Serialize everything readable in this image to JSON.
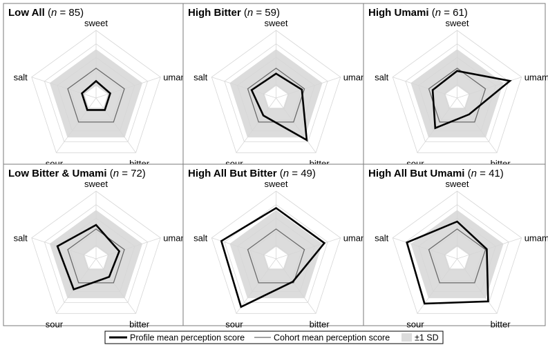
{
  "chart_data": [
    {
      "type": "radar",
      "title_bold": "Low All",
      "title_n": "85",
      "axes": [
        "sweet",
        "umami",
        "bitter",
        "sour",
        "salt"
      ],
      "series": [
        {
          "name": "Profile mean perception score",
          "values": [
            0.25,
            0.22,
            0.22,
            0.22,
            0.22
          ]
        },
        {
          "name": "Cohort mean perception score",
          "values": [
            0.44,
            0.44,
            0.44,
            0.44,
            0.44
          ]
        }
      ],
      "sd_band": {
        "lower": [
          0.18,
          0.18,
          0.18,
          0.18,
          0.18
        ],
        "upper": [
          0.72,
          0.72,
          0.72,
          0.72,
          0.72
        ]
      }
    },
    {
      "type": "radar",
      "title_bold": "High Bitter",
      "title_n": "59",
      "axes": [
        "sweet",
        "umami",
        "bitter",
        "sour",
        "salt"
      ],
      "series": [
        {
          "name": "Profile mean perception score",
          "values": [
            0.36,
            0.4,
            0.77,
            0.32,
            0.38
          ]
        },
        {
          "name": "Cohort mean perception score",
          "values": [
            0.44,
            0.44,
            0.44,
            0.44,
            0.44
          ]
        }
      ],
      "sd_band": {
        "lower": [
          0.18,
          0.18,
          0.18,
          0.18,
          0.18
        ],
        "upper": [
          0.72,
          0.72,
          0.72,
          0.72,
          0.72
        ]
      }
    },
    {
      "type": "radar",
      "title_bold": "High Umami",
      "title_n": "61",
      "axes": [
        "sweet",
        "umami",
        "bitter",
        "sour",
        "salt"
      ],
      "series": [
        {
          "name": "Profile mean perception score",
          "values": [
            0.4,
            0.82,
            0.3,
            0.55,
            0.38
          ]
        },
        {
          "name": "Cohort mean perception score",
          "values": [
            0.44,
            0.44,
            0.44,
            0.44,
            0.44
          ]
        }
      ],
      "sd_band": {
        "lower": [
          0.18,
          0.18,
          0.18,
          0.18,
          0.18
        ],
        "upper": [
          0.72,
          0.72,
          0.72,
          0.72,
          0.72
        ]
      }
    },
    {
      "type": "radar",
      "title_bold": "Low Bitter & Umami",
      "title_n": "72",
      "axes": [
        "sweet",
        "umami",
        "bitter",
        "sour",
        "salt"
      ],
      "series": [
        {
          "name": "Profile mean perception score",
          "values": [
            0.5,
            0.36,
            0.33,
            0.56,
            0.6
          ]
        },
        {
          "name": "Cohort mean perception score",
          "values": [
            0.44,
            0.44,
            0.44,
            0.44,
            0.44
          ]
        }
      ],
      "sd_band": {
        "lower": [
          0.18,
          0.18,
          0.18,
          0.18,
          0.18
        ],
        "upper": [
          0.72,
          0.72,
          0.72,
          0.72,
          0.72
        ]
      }
    },
    {
      "type": "radar",
      "title_bold": "High All But Bitter",
      "title_n": "49",
      "axes": [
        "sweet",
        "umami",
        "bitter",
        "sour",
        "salt"
      ],
      "series": [
        {
          "name": "Profile mean perception score",
          "values": [
            0.75,
            0.75,
            0.42,
            0.88,
            0.85
          ]
        },
        {
          "name": "Cohort mean perception score",
          "values": [
            0.44,
            0.44,
            0.44,
            0.44,
            0.44
          ]
        }
      ],
      "sd_band": {
        "lower": [
          0.18,
          0.18,
          0.18,
          0.18,
          0.18
        ],
        "upper": [
          0.72,
          0.72,
          0.72,
          0.72,
          0.72
        ]
      }
    },
    {
      "type": "radar",
      "title_bold": "High All But Umami",
      "title_n": "41",
      "axes": [
        "sweet",
        "umami",
        "bitter",
        "sour",
        "salt"
      ],
      "series": [
        {
          "name": "Profile mean perception score",
          "values": [
            0.55,
            0.46,
            0.78,
            0.82,
            0.78
          ]
        },
        {
          "name": "Cohort mean perception score",
          "values": [
            0.44,
            0.44,
            0.44,
            0.44,
            0.44
          ]
        }
      ],
      "sd_band": {
        "lower": [
          0.18,
          0.18,
          0.18,
          0.18,
          0.18
        ],
        "upper": [
          0.72,
          0.72,
          0.72,
          0.72,
          0.72
        ]
      }
    }
  ],
  "legend": {
    "profile_label": "Profile mean perception score",
    "cohort_label": "Cohort mean perception score",
    "sd_label": "±1 SD",
    "placement": "bottom-center"
  },
  "n_symbol": "n",
  "colors": {
    "profile": "#000000",
    "cohort": "#6a6a6a",
    "sd_band": "#dcdcdc",
    "grid": "#d6d6d6",
    "border": "#7a7a7a"
  }
}
